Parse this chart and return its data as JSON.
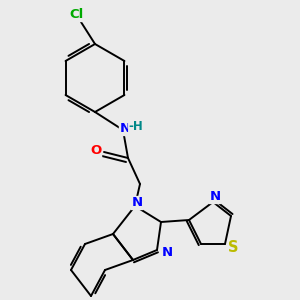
{
  "bg_color": "#ebebeb",
  "bond_color": "#000000",
  "bond_lw": 1.4,
  "atom_colors": {
    "N": "#0000ff",
    "O": "#ff0000",
    "S": "#bbbb00",
    "Cl": "#00aa00",
    "H": "#008888",
    "C": "#000000"
  },
  "font_size": 9.5
}
